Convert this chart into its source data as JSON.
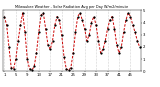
{
  "title": "Milwaukee Weather - Solar Radiation Avg per Day W/m2/minute",
  "background_color": "#ffffff",
  "grid_color": "#aaaaaa",
  "line_color": "#cc0000",
  "marker_color": "#000000",
  "ylim": [
    0,
    5
  ],
  "yticks": [
    0,
    1,
    2,
    3,
    4,
    5
  ],
  "ytick_labels": [
    "0",
    "1",
    "2",
    "3",
    "4",
    "5"
  ],
  "values": [
    4.5,
    3.8,
    2.0,
    0.3,
    0.2,
    1.0,
    2.5,
    3.8,
    4.8,
    3.2,
    1.0,
    0.2,
    0.1,
    0.4,
    1.5,
    3.2,
    4.6,
    4.8,
    3.5,
    2.2,
    1.8,
    2.5,
    3.8,
    4.5,
    4.2,
    3.0,
    1.2,
    0.2,
    0.1,
    0.3,
    1.5,
    3.2,
    4.5,
    4.8,
    4.2,
    3.5,
    2.5,
    3.0,
    4.0,
    4.5,
    3.8,
    2.5,
    1.5,
    1.8,
    2.5,
    3.5,
    4.2,
    4.5,
    3.5,
    2.2,
    1.5,
    2.0,
    3.2,
    4.2,
    4.8,
    4.5,
    3.8,
    3.2,
    2.5,
    2.0
  ],
  "n_points": 60,
  "xlim_min": 0,
  "xlim_max": 59,
  "xtick_step": 5,
  "xtick_labels": [
    "1",
    "5",
    "9",
    "13",
    "17",
    "21",
    "25",
    "29",
    "33",
    "37",
    "41",
    "45",
    "49",
    "53",
    "57"
  ]
}
